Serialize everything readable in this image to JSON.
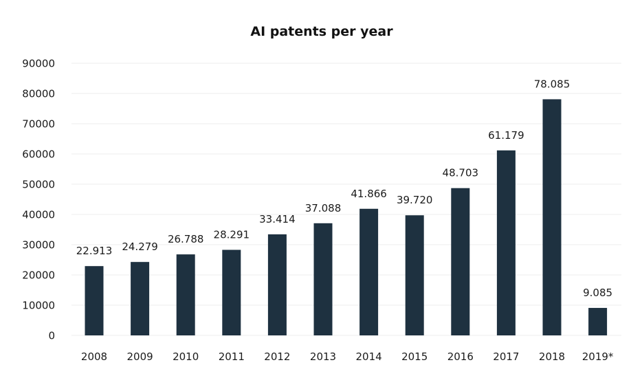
{
  "chart_data": {
    "type": "bar",
    "title": "AI patents per year",
    "xlabel": "",
    "ylabel": "",
    "categories": [
      "2008",
      "2009",
      "2010",
      "2011",
      "2012",
      "2013",
      "2014",
      "2015",
      "2016",
      "2017",
      "2018",
      "2019*"
    ],
    "values": [
      22913,
      24279,
      26788,
      28291,
      33414,
      37088,
      41866,
      39720,
      48703,
      61179,
      78085,
      9085
    ],
    "data_labels": [
      "22.913",
      "24.279",
      "26.788",
      "28.291",
      "33.414",
      "37.088",
      "41.866",
      "39.720",
      "48.703",
      "61.179",
      "78.085",
      "9.085"
    ],
    "ylim": [
      0,
      90000
    ],
    "yticks": [
      0,
      10000,
      20000,
      30000,
      40000,
      50000,
      60000,
      70000,
      80000,
      90000
    ],
    "ytick_labels": [
      "0",
      "10000",
      "20000",
      "30000",
      "40000",
      "50000",
      "60000",
      "70000",
      "80000",
      "90000"
    ],
    "grid": true,
    "legend": "none",
    "bar_color": "#1e3140"
  }
}
